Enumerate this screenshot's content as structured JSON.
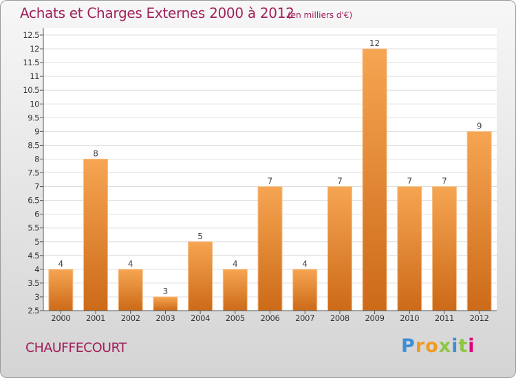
{
  "header": {
    "title": "Achats et Charges Externes 2000 à 2012",
    "subtitle": "(en milliers d'€)"
  },
  "footer": {
    "place": "CHAUFFECOURT",
    "logo_text": "Proxiti"
  },
  "colors": {
    "title": "#a0205a",
    "bar_top": "#f6a552",
    "bar_bottom": "#cc6a18",
    "logo_blue": "#3a8fd6",
    "logo_orange": "#f29a1d",
    "logo_green": "#8dc63f",
    "logo_pink": "#e0007a"
  },
  "chart_data": {
    "type": "bar",
    "title": "Achats et Charges Externes 2000 à 2012",
    "subtitle": "(en milliers d'€)",
    "xlabel": "",
    "ylabel": "",
    "categories": [
      "2000",
      "2001",
      "2002",
      "2003",
      "2004",
      "2005",
      "2006",
      "2007",
      "2008",
      "2009",
      "2010",
      "2011",
      "2012"
    ],
    "values": [
      4,
      8,
      4,
      3,
      5,
      4,
      7,
      4,
      7,
      12,
      7,
      7,
      9
    ],
    "data_labels": [
      "4",
      "8",
      "4",
      "3",
      "5",
      "4",
      "7",
      "4",
      "7",
      "12",
      "7",
      "7",
      "9"
    ],
    "ylim": [
      2.5,
      12.5
    ],
    "yticks": [
      2.5,
      3,
      3.5,
      4,
      4.5,
      5,
      5.5,
      6,
      6.5,
      7,
      7.5,
      8,
      8.5,
      9,
      9.5,
      10,
      10.5,
      11,
      11.5,
      12,
      12.5
    ],
    "ytick_labels": [
      "2.5",
      "3",
      "3.5",
      "4",
      "4.5",
      "5",
      "5.5",
      "6",
      "6.5",
      "7",
      "7.5",
      "8",
      "8.5",
      "9",
      "9.5",
      "10",
      "10.5",
      "11",
      "11.5",
      "12",
      "12.5"
    ],
    "grid": true,
    "legend": "none"
  }
}
